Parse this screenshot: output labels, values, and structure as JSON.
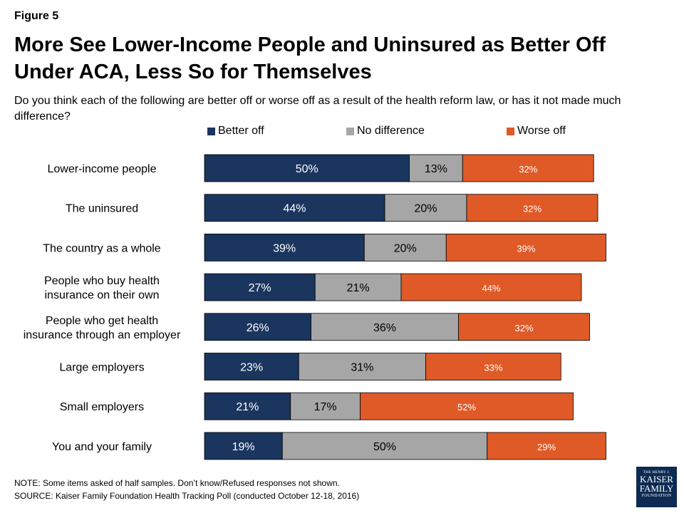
{
  "figure_label": "Figure 5",
  "title": "More See Lower-Income People and Uninsured as Better Off Under ACA, Less So for Themselves",
  "subtitle": "Do you think each of the following are better off or worse off as a result of the health reform law, or has it not made much difference?",
  "note": "NOTE: Some items asked of half samples. Don’t know/Refused responses not shown.",
  "source": "SOURCE: Kaiser Family Foundation Health Tracking Poll (conducted October 12-18, 2016)",
  "logo": {
    "line1": "THE HENRY J.",
    "line2": "KAISER",
    "line3": "FAMILY",
    "line4": "FOUNDATION"
  },
  "colors": {
    "better_off": "#1a355e",
    "no_difference": "#a6a6a6",
    "worse_off": "#e05a27"
  },
  "chart_data": {
    "type": "bar",
    "orientation": "horizontal",
    "stacked": true,
    "categories": [
      "Lower-income people",
      "The uninsured",
      "The country as a whole",
      "People who buy health insurance on their own",
      "People who get health insurance through an employer",
      "Large employers",
      "Small employers",
      "You and your family"
    ],
    "series": [
      {
        "name": "Better off",
        "color": "#1a355e",
        "values": [
          50,
          44,
          39,
          27,
          26,
          23,
          21,
          19
        ]
      },
      {
        "name": "No difference",
        "color": "#a6a6a6",
        "values": [
          13,
          20,
          20,
          21,
          36,
          31,
          17,
          50
        ]
      },
      {
        "name": "Worse off",
        "color": "#e05a27",
        "values": [
          32,
          32,
          39,
          44,
          32,
          33,
          52,
          29
        ]
      }
    ],
    "value_suffix": "%",
    "legend_position": "top",
    "grid": false
  }
}
